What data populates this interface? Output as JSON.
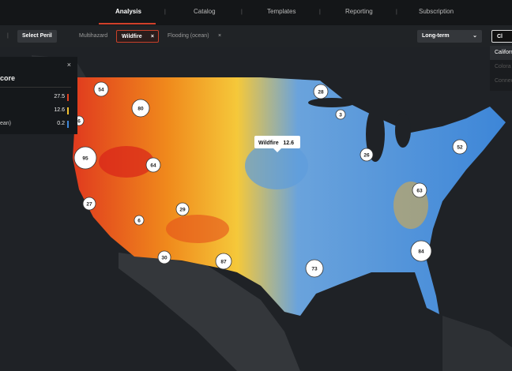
{
  "nav": {
    "tabs": [
      "Analysis",
      "Catalog",
      "Templates",
      "Reporting",
      "Subscription"
    ],
    "active": "Analysis"
  },
  "filters": {
    "select": "Select Peril",
    "perils": [
      "Multihazard",
      "Wildfire",
      "Flooding (ocean)"
    ],
    "horizon": "Long-term",
    "search": "Cl"
  },
  "suggestions": [
    "Californ",
    "Colora",
    "Connec"
  ],
  "panel": {
    "title": "core",
    "rows": [
      {
        "label": "",
        "value": 27.5
      },
      {
        "label": "",
        "value": 12.6
      },
      {
        "label": "ean)",
        "value": 0.2
      }
    ]
  },
  "tooltip": {
    "label": "Wildfire",
    "value": 12.6
  },
  "clusters": [
    54,
    80,
    28,
    3,
    6,
    95,
    64,
    26,
    52,
    27,
    6,
    29,
    63,
    30,
    87,
    73,
    84
  ]
}
